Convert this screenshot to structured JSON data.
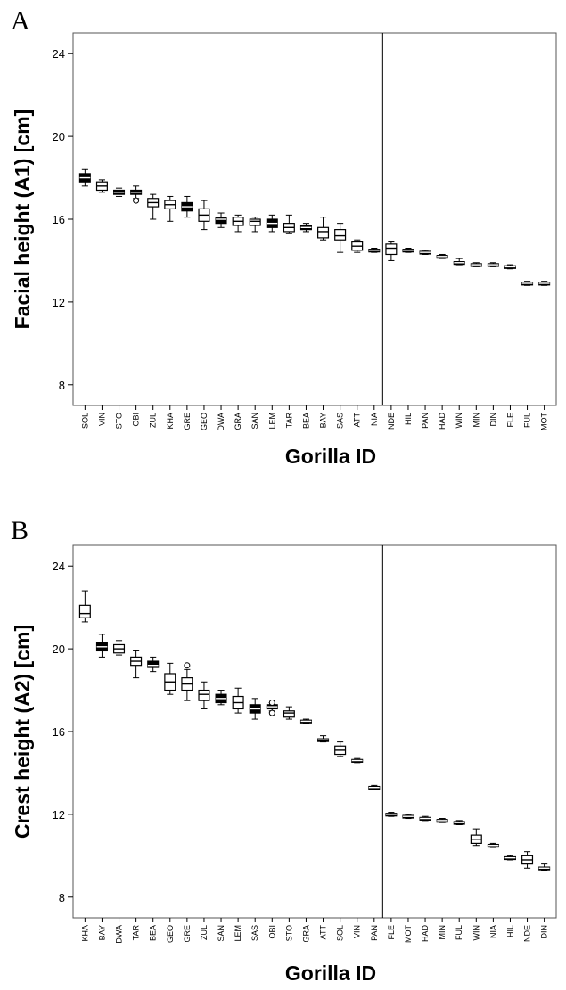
{
  "chart_data": [
    {
      "type": "box",
      "panel_label": "A",
      "xlabel": "Gorilla ID",
      "ylabel": "Facial height (A1) [cm]",
      "ylim": [
        7,
        25
      ],
      "yticks": [
        8,
        12,
        16,
        20,
        24
      ],
      "grid": false,
      "divider_after": "NIA",
      "categories": [
        "SOL",
        "VIN",
        "STO",
        "OBI",
        "ZUL",
        "KHA",
        "GRE",
        "GEO",
        "DWA",
        "GRA",
        "SAN",
        "LEM",
        "TAR",
        "BEA",
        "BAY",
        "SAS",
        "ATT",
        "NIA",
        "NDE",
        "HIL",
        "PAN",
        "HAD",
        "WIN",
        "MIN",
        "DIN",
        "FLE",
        "FUL",
        "MOT"
      ],
      "boxes": [
        {
          "min": 17.6,
          "q1": 17.8,
          "median": 18.0,
          "q3": 18.2,
          "max": 18.4,
          "fill": "#000000"
        },
        {
          "min": 17.3,
          "q1": 17.4,
          "median": 17.6,
          "q3": 17.8,
          "max": 17.9,
          "fill": "#ffffff"
        },
        {
          "min": 17.1,
          "q1": 17.2,
          "median": 17.3,
          "q3": 17.4,
          "max": 17.5,
          "fill": "#000000"
        },
        {
          "min": 17.0,
          "q1": 17.2,
          "median": 17.3,
          "q3": 17.4,
          "max": 17.6,
          "fill": "#000000",
          "outliers": [
            16.9
          ]
        },
        {
          "min": 16.0,
          "q1": 16.6,
          "median": 16.8,
          "q3": 17.0,
          "max": 17.2,
          "fill": "#ffffff"
        },
        {
          "min": 15.9,
          "q1": 16.5,
          "median": 16.7,
          "q3": 16.9,
          "max": 17.1,
          "fill": "#ffffff"
        },
        {
          "min": 16.1,
          "q1": 16.4,
          "median": 16.6,
          "q3": 16.8,
          "max": 17.1,
          "fill": "#000000"
        },
        {
          "min": 15.5,
          "q1": 15.9,
          "median": 16.2,
          "q3": 16.5,
          "max": 16.9,
          "fill": "#ffffff"
        },
        {
          "min": 15.6,
          "q1": 15.8,
          "median": 16.0,
          "q3": 16.1,
          "max": 16.3,
          "fill": "#000000"
        },
        {
          "min": 15.4,
          "q1": 15.7,
          "median": 15.9,
          "q3": 16.1,
          "max": 16.2,
          "fill": "#ffffff"
        },
        {
          "min": 15.4,
          "q1": 15.7,
          "median": 15.9,
          "q3": 16.0,
          "max": 16.1,
          "fill": "#ffffff"
        },
        {
          "min": 15.4,
          "q1": 15.6,
          "median": 15.8,
          "q3": 16.0,
          "max": 16.2,
          "fill": "#000000"
        },
        {
          "min": 15.3,
          "q1": 15.4,
          "median": 15.6,
          "q3": 15.8,
          "max": 16.2,
          "fill": "#ffffff"
        },
        {
          "min": 15.4,
          "q1": 15.5,
          "median": 15.6,
          "q3": 15.7,
          "max": 15.8,
          "fill": "#000000"
        },
        {
          "min": 15.0,
          "q1": 15.1,
          "median": 15.4,
          "q3": 15.6,
          "max": 16.1,
          "fill": "#ffffff"
        },
        {
          "min": 14.4,
          "q1": 15.0,
          "median": 15.2,
          "q3": 15.5,
          "max": 15.8,
          "fill": "#ffffff"
        },
        {
          "min": 14.4,
          "q1": 14.5,
          "median": 14.7,
          "q3": 14.9,
          "max": 15.0,
          "fill": "#ffffff"
        },
        {
          "min": 14.4,
          "q1": 14.45,
          "median": 14.5,
          "q3": 14.55,
          "max": 14.6,
          "fill": "#000000"
        },
        {
          "min": 14.0,
          "q1": 14.3,
          "median": 14.6,
          "q3": 14.8,
          "max": 14.9,
          "fill": "#ffffff"
        },
        {
          "min": 14.4,
          "q1": 14.45,
          "median": 14.5,
          "q3": 14.55,
          "max": 14.6,
          "fill": "#000000"
        },
        {
          "min": 14.3,
          "q1": 14.35,
          "median": 14.4,
          "q3": 14.45,
          "max": 14.5,
          "fill": "#000000"
        },
        {
          "min": 14.1,
          "q1": 14.15,
          "median": 14.2,
          "q3": 14.25,
          "max": 14.3,
          "fill": "#000000"
        },
        {
          "min": 13.8,
          "q1": 13.85,
          "median": 13.9,
          "q3": 13.95,
          "max": 14.1,
          "fill": "#000000"
        },
        {
          "min": 13.7,
          "q1": 13.75,
          "median": 13.8,
          "q3": 13.85,
          "max": 13.9,
          "fill": "#000000"
        },
        {
          "min": 13.7,
          "q1": 13.75,
          "median": 13.8,
          "q3": 13.85,
          "max": 13.9,
          "fill": "#000000"
        },
        {
          "min": 13.6,
          "q1": 13.65,
          "median": 13.7,
          "q3": 13.75,
          "max": 13.8,
          "fill": "#000000"
        },
        {
          "min": 12.8,
          "q1": 12.85,
          "median": 12.9,
          "q3": 12.95,
          "max": 13.0,
          "fill": "#000000"
        },
        {
          "min": 12.8,
          "q1": 12.85,
          "median": 12.9,
          "q3": 12.95,
          "max": 13.0,
          "fill": "#000000"
        }
      ]
    },
    {
      "type": "box",
      "panel_label": "B",
      "xlabel": "Gorilla ID",
      "ylabel": "Crest height (A2) [cm]",
      "ylim": [
        7,
        25
      ],
      "yticks": [
        8,
        12,
        16,
        20,
        24
      ],
      "grid": false,
      "divider_after": "PAN",
      "categories": [
        "KHA",
        "BAY",
        "DWA",
        "TAR",
        "BEA",
        "GEO",
        "GRE",
        "ZUL",
        "SAN",
        "LEM",
        "SAS",
        "OBI",
        "STO",
        "GRA",
        "ATT",
        "SOL",
        "VIN",
        "PAN",
        "FLE",
        "MOT",
        "HAD",
        "MIN",
        "FUL",
        "WIN",
        "NIA",
        "HIL",
        "NDE",
        "DIN"
      ],
      "boxes": [
        {
          "min": 21.3,
          "q1": 21.5,
          "median": 21.7,
          "q3": 22.1,
          "max": 22.8,
          "fill": "#ffffff"
        },
        {
          "min": 19.6,
          "q1": 19.9,
          "median": 20.1,
          "q3": 20.3,
          "max": 20.7,
          "fill": "#000000"
        },
        {
          "min": 19.7,
          "q1": 19.8,
          "median": 20.0,
          "q3": 20.2,
          "max": 20.4,
          "fill": "#ffffff"
        },
        {
          "min": 18.6,
          "q1": 19.2,
          "median": 19.4,
          "q3": 19.6,
          "max": 19.9,
          "fill": "#ffffff"
        },
        {
          "min": 18.9,
          "q1": 19.1,
          "median": 19.2,
          "q3": 19.4,
          "max": 19.6,
          "fill": "#000000"
        },
        {
          "min": 17.8,
          "q1": 18.0,
          "median": 18.4,
          "q3": 18.8,
          "max": 19.3,
          "fill": "#ffffff"
        },
        {
          "min": 17.5,
          "q1": 18.0,
          "median": 18.3,
          "q3": 18.6,
          "max": 19.0,
          "fill": "#ffffff",
          "outliers": [
            19.2
          ]
        },
        {
          "min": 17.1,
          "q1": 17.5,
          "median": 17.8,
          "q3": 18.0,
          "max": 18.4,
          "fill": "#ffffff"
        },
        {
          "min": 17.3,
          "q1": 17.4,
          "median": 17.6,
          "q3": 17.8,
          "max": 18.0,
          "fill": "#000000"
        },
        {
          "min": 16.9,
          "q1": 17.1,
          "median": 17.4,
          "q3": 17.7,
          "max": 18.1,
          "fill": "#ffffff"
        },
        {
          "min": 16.6,
          "q1": 16.9,
          "median": 17.1,
          "q3": 17.3,
          "max": 17.6,
          "fill": "#000000"
        },
        {
          "min": 17.0,
          "q1": 17.1,
          "median": 17.2,
          "q3": 17.3,
          "max": 17.4,
          "fill": "#000000",
          "outliers": [
            17.4,
            16.9
          ]
        },
        {
          "min": 16.6,
          "q1": 16.7,
          "median": 16.9,
          "q3": 17.0,
          "max": 17.2,
          "fill": "#ffffff"
        },
        {
          "min": 16.4,
          "q1": 16.45,
          "median": 16.5,
          "q3": 16.55,
          "max": 16.6,
          "fill": "#000000"
        },
        {
          "min": 15.5,
          "q1": 15.55,
          "median": 15.6,
          "q3": 15.65,
          "max": 15.8,
          "fill": "#000000"
        },
        {
          "min": 14.8,
          "q1": 14.9,
          "median": 15.1,
          "q3": 15.3,
          "max": 15.5,
          "fill": "#ffffff"
        },
        {
          "min": 14.5,
          "q1": 14.55,
          "median": 14.6,
          "q3": 14.65,
          "max": 14.7,
          "fill": "#000000"
        },
        {
          "min": 13.2,
          "q1": 13.25,
          "median": 13.3,
          "q3": 13.35,
          "max": 13.4,
          "fill": "#000000"
        },
        {
          "min": 11.9,
          "q1": 11.95,
          "median": 12.0,
          "q3": 12.05,
          "max": 12.1,
          "fill": "#000000"
        },
        {
          "min": 11.8,
          "q1": 11.85,
          "median": 11.9,
          "q3": 11.95,
          "max": 12.0,
          "fill": "#000000"
        },
        {
          "min": 11.7,
          "q1": 11.75,
          "median": 11.8,
          "q3": 11.85,
          "max": 11.9,
          "fill": "#000000"
        },
        {
          "min": 11.6,
          "q1": 11.65,
          "median": 11.7,
          "q3": 11.75,
          "max": 11.8,
          "fill": "#000000"
        },
        {
          "min": 11.5,
          "q1": 11.55,
          "median": 11.6,
          "q3": 11.65,
          "max": 11.7,
          "fill": "#000000"
        },
        {
          "min": 10.5,
          "q1": 10.6,
          "median": 10.8,
          "q3": 11.0,
          "max": 11.3,
          "fill": "#ffffff"
        },
        {
          "min": 10.4,
          "q1": 10.45,
          "median": 10.5,
          "q3": 10.55,
          "max": 10.6,
          "fill": "#000000"
        },
        {
          "min": 9.8,
          "q1": 9.85,
          "median": 9.9,
          "q3": 9.95,
          "max": 10.0,
          "fill": "#000000"
        },
        {
          "min": 9.4,
          "q1": 9.6,
          "median": 9.8,
          "q3": 10.0,
          "max": 10.2,
          "fill": "#ffffff"
        },
        {
          "min": 9.3,
          "q1": 9.35,
          "median": 9.4,
          "q3": 9.45,
          "max": 9.6,
          "fill": "#000000"
        }
      ]
    }
  ]
}
